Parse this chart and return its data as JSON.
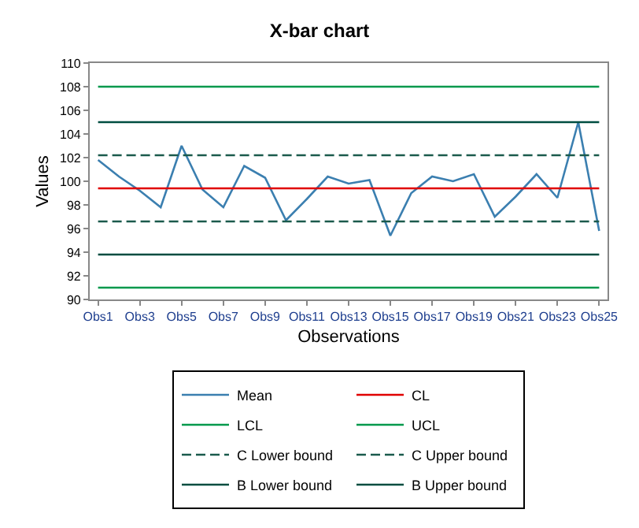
{
  "chart_data": {
    "type": "line",
    "title": "X-bar chart",
    "xlabel": "Observations",
    "ylabel": "Values",
    "categories": [
      "Obs1",
      null,
      "Obs3",
      null,
      "Obs5",
      null,
      "Obs7",
      null,
      "Obs9",
      null,
      "Obs11",
      null,
      "Obs13",
      null,
      "Obs15",
      null,
      "Obs17",
      null,
      "Obs19",
      null,
      "Obs21",
      null,
      "Obs23",
      null,
      "Obs25"
    ],
    "series": [
      {
        "name": "Mean",
        "color": "#3b7fb0",
        "line_style": "solid",
        "values": [
          101.8,
          100.4,
          99.2,
          97.8,
          103.0,
          99.3,
          97.8,
          101.3,
          100.3,
          96.7,
          98.5,
          100.4,
          99.8,
          100.1,
          95.4,
          99.0,
          100.4,
          100.0,
          100.6,
          97.0,
          98.7,
          100.6,
          98.6,
          105.0,
          95.8
        ]
      },
      {
        "name": "CL",
        "color": "#e00000",
        "line_style": "solid",
        "values": [
          99.4,
          99.4,
          99.4,
          99.4,
          99.4,
          99.4,
          99.4,
          99.4,
          99.4,
          99.4,
          99.4,
          99.4,
          99.4,
          99.4,
          99.4,
          99.4,
          99.4,
          99.4,
          99.4,
          99.4,
          99.4,
          99.4,
          99.4,
          99.4,
          99.4
        ]
      },
      {
        "name": "LCL",
        "color": "#00994c",
        "line_style": "solid",
        "values": [
          91.0,
          91.0,
          91.0,
          91.0,
          91.0,
          91.0,
          91.0,
          91.0,
          91.0,
          91.0,
          91.0,
          91.0,
          91.0,
          91.0,
          91.0,
          91.0,
          91.0,
          91.0,
          91.0,
          91.0,
          91.0,
          91.0,
          91.0,
          91.0,
          91.0
        ]
      },
      {
        "name": "UCL",
        "color": "#00994c",
        "line_style": "solid",
        "values": [
          108.0,
          108.0,
          108.0,
          108.0,
          108.0,
          108.0,
          108.0,
          108.0,
          108.0,
          108.0,
          108.0,
          108.0,
          108.0,
          108.0,
          108.0,
          108.0,
          108.0,
          108.0,
          108.0,
          108.0,
          108.0,
          108.0,
          108.0,
          108.0,
          108.0
        ]
      },
      {
        "name": "C Lower bound",
        "color": "#1b5a4c",
        "line_style": "dashed",
        "values": [
          96.6,
          96.6,
          96.6,
          96.6,
          96.6,
          96.6,
          96.6,
          96.6,
          96.6,
          96.6,
          96.6,
          96.6,
          96.6,
          96.6,
          96.6,
          96.6,
          96.6,
          96.6,
          96.6,
          96.6,
          96.6,
          96.6,
          96.6,
          96.6,
          96.6
        ]
      },
      {
        "name": "C Upper bound",
        "color": "#1b5a4c",
        "line_style": "dashed",
        "values": [
          102.2,
          102.2,
          102.2,
          102.2,
          102.2,
          102.2,
          102.2,
          102.2,
          102.2,
          102.2,
          102.2,
          102.2,
          102.2,
          102.2,
          102.2,
          102.2,
          102.2,
          102.2,
          102.2,
          102.2,
          102.2,
          102.2,
          102.2,
          102.2,
          102.2
        ]
      },
      {
        "name": "B Lower bound",
        "color": "#004d40",
        "line_style": "solid",
        "values": [
          93.8,
          93.8,
          93.8,
          93.8,
          93.8,
          93.8,
          93.8,
          93.8,
          93.8,
          93.8,
          93.8,
          93.8,
          93.8,
          93.8,
          93.8,
          93.8,
          93.8,
          93.8,
          93.8,
          93.8,
          93.8,
          93.8,
          93.8,
          93.8,
          93.8
        ]
      },
      {
        "name": "B Upper bound",
        "color": "#004d40",
        "line_style": "solid",
        "values": [
          105.0,
          105.0,
          105.0,
          105.0,
          105.0,
          105.0,
          105.0,
          105.0,
          105.0,
          105.0,
          105.0,
          105.0,
          105.0,
          105.0,
          105.0,
          105.0,
          105.0,
          105.0,
          105.0,
          105.0,
          105.0,
          105.0,
          105.0,
          105.0,
          105.0
        ]
      }
    ],
    "ylim": [
      90,
      110
    ],
    "yticks": [
      90,
      92,
      94,
      96,
      98,
      100,
      102,
      104,
      106,
      108,
      110
    ],
    "legend": "bottom",
    "marker": "none"
  }
}
